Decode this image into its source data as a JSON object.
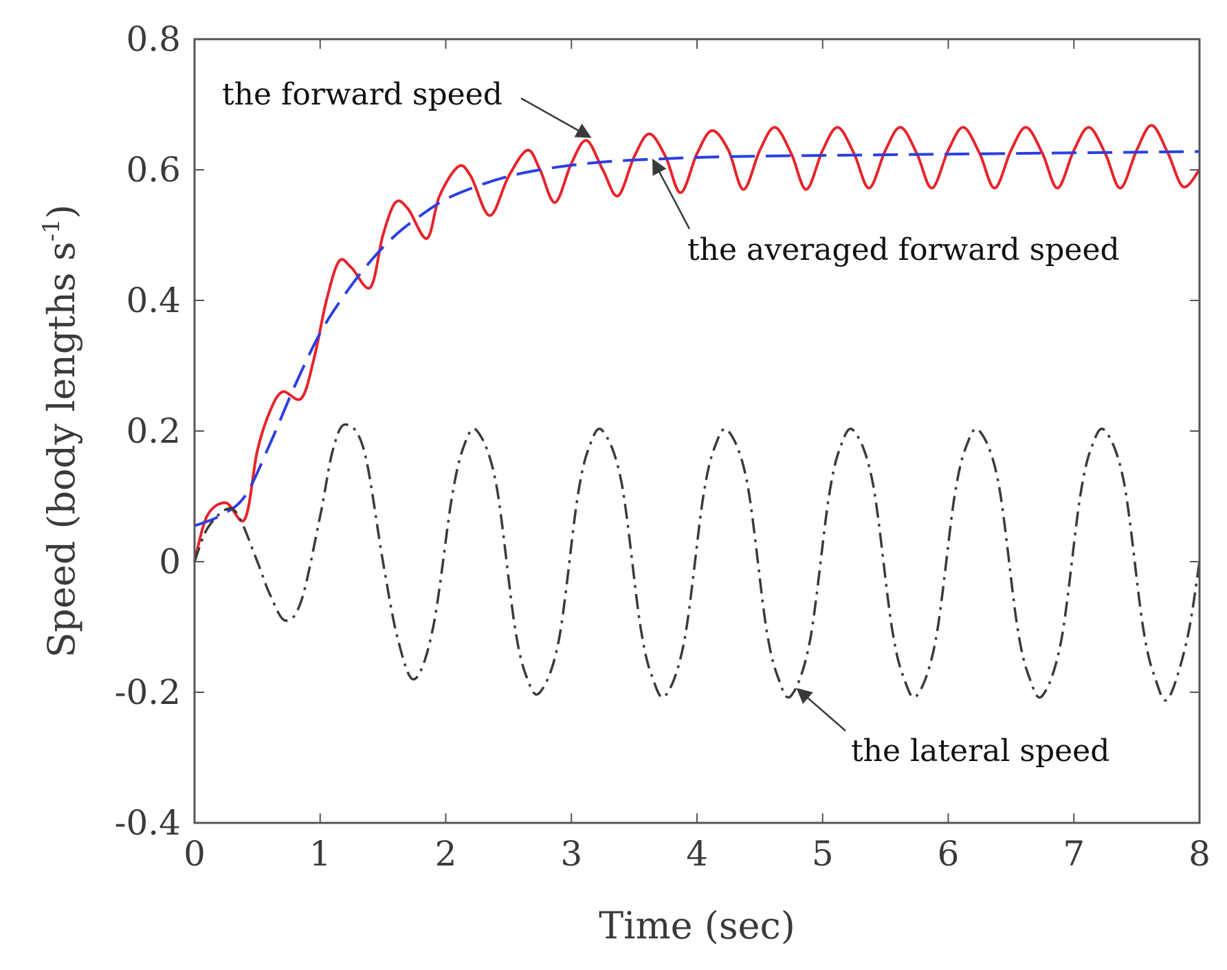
{
  "chart_data": {
    "type": "line",
    "title": "",
    "xlabel": "Time (sec)",
    "ylabel": "Speed (body lengths s",
    "ylabel_sup": "-1",
    "ylabel_close": ")",
    "xlim": [
      0,
      8
    ],
    "ylim": [
      -0.4,
      0.8
    ],
    "xticks": [
      0,
      1,
      2,
      3,
      4,
      5,
      6,
      7,
      8
    ],
    "xtick_labels": [
      "0",
      "1",
      "2",
      "3",
      "4",
      "5",
      "6",
      "7",
      "8"
    ],
    "yticks": [
      -0.4,
      -0.2,
      0,
      0.2,
      0.4,
      0.6,
      0.8
    ],
    "ytick_labels": [
      "-0.4",
      "-0.2",
      "0",
      "0.2",
      "0.4",
      "0.6",
      "0.8"
    ],
    "grid": false,
    "series": [
      {
        "name": "the forward speed",
        "style": "solid",
        "color": "#e8232a",
        "x": [
          0,
          0.1,
          0.25,
          0.4,
          0.5,
          0.6,
          0.7,
          0.85,
          0.95,
          1.05,
          1.15,
          1.25,
          1.4,
          1.5,
          1.6,
          1.7,
          1.85,
          1.95,
          2.1,
          2.2,
          2.35,
          2.5,
          2.65,
          2.75,
          2.87,
          3.0,
          3.12,
          3.25,
          3.37,
          3.5,
          3.62,
          3.75,
          3.87,
          4.0,
          4.12,
          4.25,
          4.37,
          4.5,
          4.62,
          4.75,
          4.87,
          5.0,
          5.12,
          5.25,
          5.37,
          5.5,
          5.62,
          5.75,
          5.87,
          6.0,
          6.12,
          6.25,
          6.37,
          6.5,
          6.62,
          6.75,
          6.87,
          7.0,
          7.12,
          7.25,
          7.37,
          7.5,
          7.62,
          7.75,
          7.87,
          8.0
        ],
        "values": [
          0.0,
          0.07,
          0.09,
          0.065,
          0.17,
          0.23,
          0.26,
          0.25,
          0.31,
          0.4,
          0.46,
          0.45,
          0.42,
          0.5,
          0.55,
          0.54,
          0.495,
          0.56,
          0.605,
          0.59,
          0.53,
          0.59,
          0.63,
          0.6,
          0.55,
          0.61,
          0.645,
          0.6,
          0.56,
          0.62,
          0.655,
          0.62,
          0.565,
          0.625,
          0.66,
          0.63,
          0.57,
          0.63,
          0.665,
          0.625,
          0.57,
          0.63,
          0.665,
          0.625,
          0.572,
          0.63,
          0.665,
          0.625,
          0.572,
          0.63,
          0.665,
          0.625,
          0.572,
          0.63,
          0.665,
          0.625,
          0.572,
          0.63,
          0.665,
          0.625,
          0.572,
          0.63,
          0.668,
          0.625,
          0.574,
          0.6
        ]
      },
      {
        "name": "the averaged forward speed",
        "style": "dashed",
        "color": "#2b3fe0",
        "x": [
          0,
          0.2,
          0.4,
          0.6,
          0.8,
          1.0,
          1.2,
          1.4,
          1.6,
          1.8,
          2.0,
          2.25,
          2.5,
          2.75,
          3.0,
          3.25,
          3.5,
          3.75,
          4.0,
          4.5,
          5.0,
          5.5,
          6.0,
          6.5,
          7.0,
          7.5,
          8.0
        ],
        "values": [
          0.055,
          0.07,
          0.1,
          0.18,
          0.27,
          0.35,
          0.41,
          0.46,
          0.5,
          0.53,
          0.555,
          0.575,
          0.59,
          0.6,
          0.607,
          0.612,
          0.615,
          0.617,
          0.619,
          0.621,
          0.622,
          0.623,
          0.624,
          0.625,
          0.626,
          0.627,
          0.628
        ]
      },
      {
        "name": "the lateral speed",
        "style": "dash-dot",
        "color": "#3a3a3a",
        "x": [
          0,
          0.1,
          0.25,
          0.35,
          0.5,
          0.6,
          0.72,
          0.85,
          1.0,
          1.1,
          1.2,
          1.35,
          1.5,
          1.62,
          1.75,
          1.9,
          2.05,
          2.15,
          2.25,
          2.4,
          2.55,
          2.65,
          2.75,
          2.9,
          3.05,
          3.15,
          3.25,
          3.4,
          3.55,
          3.65,
          3.75,
          3.9,
          4.05,
          4.15,
          4.25,
          4.4,
          4.55,
          4.65,
          4.75,
          4.9,
          5.05,
          5.15,
          5.25,
          5.4,
          5.55,
          5.65,
          5.75,
          5.9,
          6.05,
          6.15,
          6.25,
          6.4,
          6.55,
          6.65,
          6.75,
          6.9,
          7.05,
          7.15,
          7.25,
          7.4,
          7.55,
          7.65,
          7.75,
          7.9,
          8.0
        ],
        "values": [
          0.0,
          0.05,
          0.08,
          0.07,
          0.0,
          -0.05,
          -0.09,
          -0.06,
          0.07,
          0.17,
          0.21,
          0.17,
          0.0,
          -0.12,
          -0.18,
          -0.1,
          0.1,
          0.18,
          0.2,
          0.12,
          -0.1,
          -0.18,
          -0.2,
          -0.12,
          0.1,
          0.18,
          0.2,
          0.12,
          -0.1,
          -0.18,
          -0.205,
          -0.12,
          0.1,
          0.18,
          0.2,
          0.12,
          -0.1,
          -0.18,
          -0.205,
          -0.12,
          0.1,
          0.18,
          0.2,
          0.12,
          -0.1,
          -0.18,
          -0.205,
          -0.12,
          0.1,
          0.18,
          0.2,
          0.12,
          -0.1,
          -0.18,
          -0.205,
          -0.12,
          0.1,
          0.18,
          0.2,
          0.12,
          -0.1,
          -0.18,
          -0.21,
          -0.12,
          0.0
        ]
      }
    ],
    "annotations": [
      {
        "text": "the forward speed",
        "points_to": [
          3.15,
          0.65
        ]
      },
      {
        "text": "the averaged forward speed",
        "points_to": [
          3.65,
          0.615
        ]
      },
      {
        "text": "the lateral speed",
        "points_to": [
          4.8,
          -0.195
        ]
      }
    ]
  }
}
